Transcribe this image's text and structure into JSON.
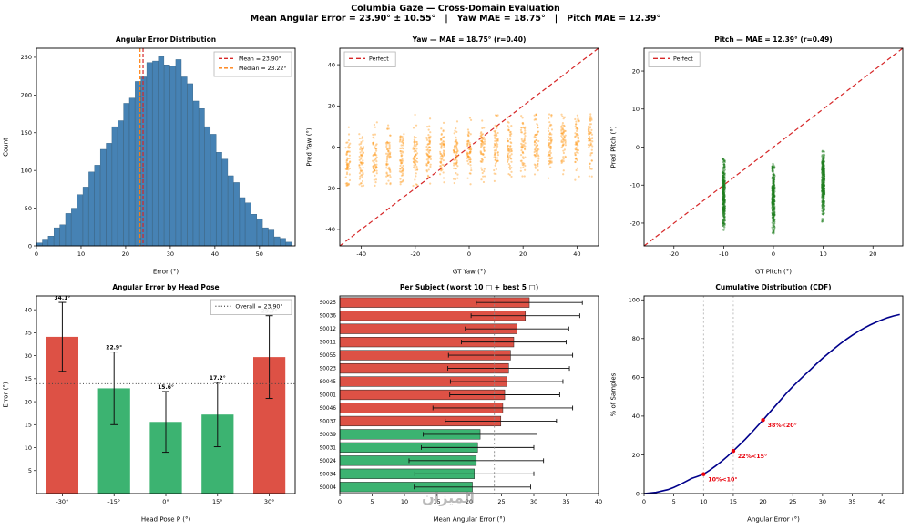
{
  "header": {
    "title": "Columbia Gaze — Cross-Domain Evaluation",
    "subtitle": "Mean Angular Error = 23.90° ± 10.55°   |   Yaw MAE = 18.75°   |   Pitch MAE = 12.39°"
  },
  "watermark": "الميزان",
  "chart_data": [
    {
      "type": "bar",
      "variant": "histogram",
      "title": "Angular Error Distribution",
      "xlabel": "Error (°)",
      "ylabel": "Count",
      "xlim": [
        0,
        58
      ],
      "ylim": [
        0,
        262
      ],
      "xticks": [
        0,
        10,
        20,
        30,
        40,
        50
      ],
      "yticks": [
        0,
        50,
        100,
        150,
        200,
        250
      ],
      "bin_start": 0,
      "bin_width": 1.3,
      "counts": [
        4,
        9,
        13,
        24,
        28,
        43,
        50,
        68,
        78,
        98,
        107,
        128,
        136,
        158,
        166,
        189,
        196,
        218,
        224,
        243,
        245,
        251,
        240,
        238,
        247,
        224,
        215,
        192,
        182,
        158,
        148,
        124,
        115,
        93,
        84,
        64,
        57,
        42,
        36,
        24,
        21,
        12,
        10,
        5
      ],
      "bar_color": "#4682b4",
      "bar_edge": "#2f5d7f",
      "mean": 23.9,
      "median": 23.22,
      "vlines": [
        {
          "x": 23.9,
          "color": "#d62728",
          "name": "mean-line"
        },
        {
          "x": 23.22,
          "color": "#ff7f0e",
          "name": "median-line"
        }
      ],
      "legend": {
        "pos": "tr",
        "entries": [
          {
            "label": "Mean = 23.90°",
            "color": "#d62728",
            "dash": "4 2"
          },
          {
            "label": "Median = 23.22°",
            "color": "#ff7f0e",
            "dash": "4 2"
          }
        ]
      }
    },
    {
      "type": "scatter",
      "title": "Yaw — MAE = 18.75° (r=0.40)",
      "xlabel": "GT Yaw (°)",
      "ylabel": "Pred Yaw (°)",
      "xlim": [
        -48,
        48
      ],
      "ylim": [
        -48,
        48
      ],
      "xticks": [
        -40,
        -20,
        0,
        20,
        40
      ],
      "yticks": [
        -40,
        -20,
        0,
        20,
        40
      ],
      "color": "#ff9d23",
      "opacity": 0.45,
      "dot_r": 1.1,
      "diag_color": "#d62728",
      "seed": 7,
      "n": 60,
      "sd": 7,
      "jitter": 1.6,
      "clip": [
        -19,
        16
      ],
      "stripes": [
        {
          "gt": -45,
          "center": -7.4
        },
        {
          "gt": -40,
          "center": -6.7
        },
        {
          "gt": -35,
          "center": -6.1
        },
        {
          "gt": -30,
          "center": -5.4
        },
        {
          "gt": -25,
          "center": -4.8
        },
        {
          "gt": -20,
          "center": -4.1
        },
        {
          "gt": -15,
          "center": -3.5
        },
        {
          "gt": -10,
          "center": -2.8
        },
        {
          "gt": -5,
          "center": -2.2
        },
        {
          "gt": 0,
          "center": -1.5
        },
        {
          "gt": 5,
          "center": -0.9
        },
        {
          "gt": 10,
          "center": -0.2
        },
        {
          "gt": 15,
          "center": 0.5
        },
        {
          "gt": 20,
          "center": 1.1
        },
        {
          "gt": 25,
          "center": 1.8
        },
        {
          "gt": 30,
          "center": 2.4
        },
        {
          "gt": 35,
          "center": 3.1
        },
        {
          "gt": 40,
          "center": 3.7
        },
        {
          "gt": 45,
          "center": 4.4
        }
      ],
      "legend": {
        "pos": "tl",
        "entries": [
          {
            "label": "Perfect",
            "color": "#d62728",
            "dash": "5 3"
          }
        ]
      }
    },
    {
      "type": "scatter",
      "title": "Pitch — MAE = 12.39° (r=0.49)",
      "xlabel": "GT Pitch (°)",
      "ylabel": "Pred Pitch (°)",
      "xlim": [
        -26,
        26
      ],
      "ylim": [
        -26,
        26
      ],
      "xticks": [
        -20,
        -10,
        0,
        10,
        20
      ],
      "yticks": [
        -20,
        -10,
        0,
        10,
        20
      ],
      "color": "#1e7d1e",
      "opacity": 0.5,
      "dot_r": 1.2,
      "diag_color": "#d62728",
      "seed": 11,
      "n": 260,
      "sd": 4.2,
      "jitter": 0.5,
      "stripes": [
        {
          "gt": -10,
          "center": -12,
          "clip": [
            -22,
            -3
          ]
        },
        {
          "gt": 0,
          "center": -13,
          "clip": [
            -23,
            -4
          ]
        },
        {
          "gt": 10,
          "center": -10,
          "clip": [
            -20,
            -0.5
          ]
        }
      ],
      "legend": {
        "pos": "tl",
        "entries": [
          {
            "label": "Perfect",
            "color": "#d62728",
            "dash": "5 3"
          }
        ]
      }
    },
    {
      "type": "bar",
      "variant": "bar_pose",
      "title": "Angular Error by Head Pose",
      "xlabel": "Head Pose P (°)",
      "ylabel": "Error (°)",
      "xlim": [
        0,
        1
      ],
      "ylim": [
        0,
        43
      ],
      "yticks": [
        5,
        10,
        15,
        20,
        25,
        30,
        35,
        40
      ],
      "categories": [
        "-30°",
        "-15°",
        "0°",
        "15°",
        "30°"
      ],
      "values": [
        34.1,
        22.9,
        15.6,
        17.2,
        29.7
      ],
      "errors": [
        7.5,
        7.9,
        6.6,
        7.0,
        9.0
      ],
      "labels": [
        "34.1°",
        "22.9°",
        "15.6°",
        "17.2°",
        "29.7°"
      ],
      "colors": [
        "#dd5145",
        "#3cb371",
        "#3cb371",
        "#3cb371",
        "#dd5145"
      ],
      "overall": 23.9,
      "legend": {
        "pos": "tr",
        "entries": [
          {
            "label": "Overall = 23.90°",
            "color": "#555555",
            "dash": "1 2.2"
          }
        ]
      }
    },
    {
      "type": "bar",
      "variant": "barh",
      "title": "Per Subject (worst 10 □ + best 5 □)",
      "xlabel": "Mean Angular Error (°)",
      "xlim": [
        0,
        40
      ],
      "ylim": [
        0,
        1
      ],
      "xticks": [
        0,
        5,
        10,
        15,
        20,
        25,
        30,
        35,
        40
      ],
      "red": "#dd5145",
      "green": "#3cb371",
      "overall": 23.9,
      "rows": [
        {
          "id": "S0025",
          "value": 29.3,
          "err": 8.2,
          "color": "red"
        },
        {
          "id": "S0036",
          "value": 28.7,
          "err": 8.4,
          "color": "red"
        },
        {
          "id": "S0012",
          "value": 27.4,
          "err": 8.0,
          "color": "red"
        },
        {
          "id": "S0011",
          "value": 26.9,
          "err": 8.1,
          "color": "red"
        },
        {
          "id": "S0055",
          "value": 26.4,
          "err": 9.6,
          "color": "red"
        },
        {
          "id": "S0023",
          "value": 26.1,
          "err": 9.4,
          "color": "red"
        },
        {
          "id": "S0045",
          "value": 25.8,
          "err": 8.7,
          "color": "red"
        },
        {
          "id": "S0001",
          "value": 25.5,
          "err": 8.5,
          "color": "red"
        },
        {
          "id": "S0046",
          "value": 25.2,
          "err": 10.8,
          "color": "red"
        },
        {
          "id": "S0037",
          "value": 24.9,
          "err": 8.6,
          "color": "red"
        },
        {
          "id": "S0039",
          "value": 21.7,
          "err": 8.8,
          "color": "green"
        },
        {
          "id": "S0031",
          "value": 21.3,
          "err": 8.7,
          "color": "green"
        },
        {
          "id": "S0024",
          "value": 21.1,
          "err": 10.4,
          "color": "green"
        },
        {
          "id": "S0034",
          "value": 20.8,
          "err": 9.2,
          "color": "green"
        },
        {
          "id": "S0004",
          "value": 20.5,
          "err": 9.0,
          "color": "green"
        }
      ]
    },
    {
      "type": "line",
      "variant": "cdf",
      "title": "Cumulative Distribution (CDF)",
      "xlabel": "Angular Error (°)",
      "ylabel": "% of Samples",
      "xlim": [
        0,
        43.5
      ],
      "ylim": [
        0,
        102
      ],
      "xticks": [
        0,
        5,
        10,
        15,
        20,
        25,
        30,
        35,
        40
      ],
      "yticks": [
        0,
        20,
        40,
        60,
        80,
        100
      ],
      "line_color": "#00008b",
      "mark_color": "#e8000b",
      "guides": [
        10,
        15,
        20
      ],
      "points": [
        [
          0,
          0
        ],
        [
          2,
          0.6
        ],
        [
          4,
          2
        ],
        [
          5,
          3.2
        ],
        [
          6,
          4.6
        ],
        [
          7,
          6.2
        ],
        [
          8,
          7.8
        ],
        [
          9,
          8.9
        ],
        [
          10,
          10
        ],
        [
          11,
          12
        ],
        [
          12,
          14.2
        ],
        [
          13,
          16.6
        ],
        [
          14,
          19.2
        ],
        [
          15,
          22
        ],
        [
          16,
          25
        ],
        [
          17,
          28
        ],
        [
          18,
          31.2
        ],
        [
          19,
          34.6
        ],
        [
          20,
          38
        ],
        [
          21,
          41.5
        ],
        [
          22,
          45
        ],
        [
          23,
          48.5
        ],
        [
          24,
          52
        ],
        [
          25,
          55.2
        ],
        [
          26,
          58.2
        ],
        [
          27,
          61.2
        ],
        [
          28,
          64
        ],
        [
          29,
          67
        ],
        [
          30,
          69.8
        ],
        [
          31,
          72.4
        ],
        [
          32,
          74.9
        ],
        [
          33,
          77.3
        ],
        [
          34,
          79.6
        ],
        [
          35,
          81.7
        ],
        [
          36,
          83.6
        ],
        [
          37,
          85.4
        ],
        [
          38,
          87
        ],
        [
          39,
          88.4
        ],
        [
          40,
          89.7
        ],
        [
          41,
          90.8
        ],
        [
          42,
          91.7
        ],
        [
          43,
          92.4
        ]
      ],
      "marks": [
        {
          "x": 10,
          "y": 10,
          "label": "10%<10°"
        },
        {
          "x": 15,
          "y": 22,
          "label": "22%<15°"
        },
        {
          "x": 20,
          "y": 38,
          "label": "38%<20°"
        }
      ]
    }
  ]
}
